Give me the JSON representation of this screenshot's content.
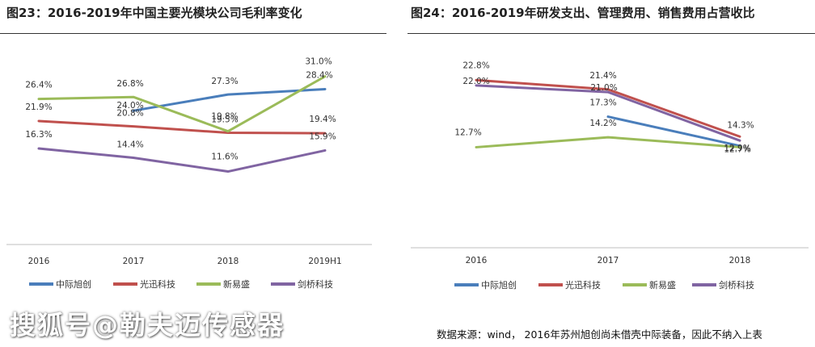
{
  "colors": {
    "中际旭创": "#4a7ebb",
    "光迅科技": "#c0504d",
    "新易盛": "#9bbb59",
    "剑桥科技": "#8064a2"
  },
  "chart_data": [
    {
      "type": "line",
      "title": "图23：2016-2019年中国主要光模块公司毛利率变化",
      "categories": [
        "2016",
        "2017",
        "2018",
        "2019H1"
      ],
      "ylim": [
        0,
        40
      ],
      "grid": false,
      "legend": "bottom",
      "series": [
        {
          "name": "中际旭创",
          "values": [
            null,
            24.0,
            27.3,
            28.4
          ],
          "labels": [
            "",
            "24.0%",
            "27.3%",
            "28.4%"
          ]
        },
        {
          "name": "光迅科技",
          "values": [
            21.9,
            20.8,
            19.5,
            19.4
          ],
          "labels": [
            "21.9%",
            "20.8%",
            "19.5%",
            "19.4%"
          ]
        },
        {
          "name": "新易盛",
          "values": [
            26.4,
            26.8,
            19.8,
            31.0
          ],
          "labels": [
            "26.4%",
            "26.8%",
            "19.8%",
            "31.0%"
          ]
        },
        {
          "name": "剑桥科技",
          "values": [
            16.3,
            14.4,
            11.6,
            15.9
          ],
          "labels": [
            "16.3%",
            "14.4%",
            "11.6%",
            "15.9%"
          ]
        }
      ]
    },
    {
      "type": "line",
      "title": "图24：2016-2019年研发支出、管理费用、销售费用占营收比",
      "categories": [
        "2016",
        "2017",
        "2018"
      ],
      "ylim": [
        0,
        30
      ],
      "grid": false,
      "legend": "bottom",
      "series": [
        {
          "name": "中际旭创",
          "values": [
            null,
            17.3,
            12.9
          ],
          "labels": [
            "",
            "17.3%",
            "12.9%"
          ]
        },
        {
          "name": "光迅科技",
          "values": [
            22.8,
            21.4,
            14.3
          ],
          "labels": [
            "22.8%",
            "21.4%",
            "14.3%"
          ]
        },
        {
          "name": "新易盛",
          "values": [
            12.7,
            14.2,
            12.7
          ],
          "labels": [
            "12.7%",
            "14.2%",
            "12.7%"
          ]
        },
        {
          "name": "剑桥科技",
          "values": [
            22.0,
            21.0,
            13.7
          ],
          "labels": [
            "22.0%",
            "21.0%",
            ""
          ]
        }
      ]
    }
  ],
  "watermark": "搜狐号@勒夫迈传感器",
  "source": "数据来源：wind， 2016年苏州旭创尚未借壳中际装备，因此不纳入上表"
}
